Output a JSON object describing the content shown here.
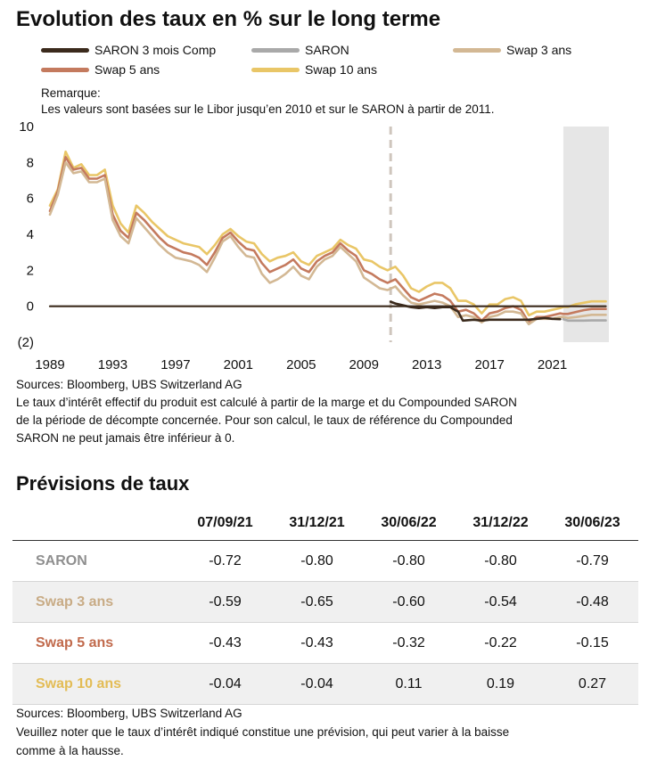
{
  "title": "Evolution des taux en % sur le long terme",
  "remark": {
    "label": "Remarque:",
    "text": "Les valeurs sont basées sur le Libor jusqu’en 2010 et sur le SARON  à partir de 2011."
  },
  "colors": {
    "saron3m": "#3b2a1c",
    "saron": "#a9a9a9",
    "swap3": "#d3b894",
    "swap5": "#c47a5e",
    "swap10": "#e9c667",
    "forecast_shade": "#e6e6e6",
    "divider": "#cfc6bd"
  },
  "chart_data": {
    "type": "line",
    "xlim": [
      1989,
      2024.6
    ],
    "ylim": [
      -2,
      10
    ],
    "x_ticks": [
      1989,
      1993,
      1997,
      2001,
      2005,
      2009,
      2013,
      2017,
      2021
    ],
    "y_ticks": [
      {
        "value": 10,
        "label": "10"
      },
      {
        "value": 8,
        "label": "8"
      },
      {
        "value": 6,
        "label": "6"
      },
      {
        "value": 4,
        "label": "4"
      },
      {
        "value": 2,
        "label": "2"
      },
      {
        "value": 0,
        "label": "0"
      },
      {
        "value": -2,
        "label": "(2)"
      }
    ],
    "divider_x": 2010.7,
    "forecast_start": 2021.7,
    "legend": [
      "SARON 3 mois Comp",
      "SARON",
      "Swap 3 ans",
      "Swap 5 ans",
      "Swap 10 ans"
    ],
    "series": [
      {
        "name": "Swap 10 ans",
        "key": "swap10",
        "points": [
          [
            1989,
            5.6
          ],
          [
            1989.5,
            6.5
          ],
          [
            1990,
            8.6
          ],
          [
            1990.5,
            7.7
          ],
          [
            1991,
            7.9
          ],
          [
            1991.5,
            7.3
          ],
          [
            1992,
            7.3
          ],
          [
            1992.5,
            7.6
          ],
          [
            1993,
            5.6
          ],
          [
            1993.5,
            4.6
          ],
          [
            1994,
            4.1
          ],
          [
            1994.5,
            5.6
          ],
          [
            1995,
            5.2
          ],
          [
            1995.5,
            4.7
          ],
          [
            1996,
            4.3
          ],
          [
            1996.5,
            3.9
          ],
          [
            1997,
            3.7
          ],
          [
            1997.5,
            3.5
          ],
          [
            1998,
            3.4
          ],
          [
            1998.5,
            3.3
          ],
          [
            1999,
            2.9
          ],
          [
            1999.5,
            3.4
          ],
          [
            2000,
            4.0
          ],
          [
            2000.5,
            4.3
          ],
          [
            2001,
            3.9
          ],
          [
            2001.5,
            3.6
          ],
          [
            2002,
            3.5
          ],
          [
            2002.5,
            2.9
          ],
          [
            2003,
            2.5
          ],
          [
            2003.5,
            2.7
          ],
          [
            2004,
            2.8
          ],
          [
            2004.5,
            3.0
          ],
          [
            2005,
            2.5
          ],
          [
            2005.5,
            2.3
          ],
          [
            2006,
            2.8
          ],
          [
            2006.5,
            3.0
          ],
          [
            2007,
            3.2
          ],
          [
            2007.5,
            3.7
          ],
          [
            2008,
            3.4
          ],
          [
            2008.5,
            3.2
          ],
          [
            2009,
            2.6
          ],
          [
            2009.5,
            2.5
          ],
          [
            2010,
            2.2
          ],
          [
            2010.5,
            2.0
          ],
          [
            2011,
            2.2
          ],
          [
            2011.5,
            1.7
          ],
          [
            2012,
            1.0
          ],
          [
            2012.5,
            0.8
          ],
          [
            2013,
            1.1
          ],
          [
            2013.5,
            1.3
          ],
          [
            2014,
            1.3
          ],
          [
            2014.5,
            1.0
          ],
          [
            2015,
            0.3
          ],
          [
            2015.5,
            0.3
          ],
          [
            2016,
            0.1
          ],
          [
            2016.5,
            -0.4
          ],
          [
            2017,
            0.1
          ],
          [
            2017.5,
            0.1
          ],
          [
            2018,
            0.4
          ],
          [
            2018.5,
            0.5
          ],
          [
            2019,
            0.3
          ],
          [
            2019.5,
            -0.5
          ],
          [
            2020,
            -0.3
          ],
          [
            2020.5,
            -0.3
          ],
          [
            2021,
            -0.2
          ],
          [
            2021.5,
            -0.1
          ],
          [
            2021.7,
            -0.04
          ],
          [
            2021.99,
            -0.04
          ],
          [
            2022.5,
            0.11
          ],
          [
            2022.99,
            0.19
          ],
          [
            2023.5,
            0.27
          ],
          [
            2024.4,
            0.27
          ]
        ]
      },
      {
        "name": "Swap 5 ans",
        "key": "swap5",
        "points": [
          [
            1989,
            5.3
          ],
          [
            1989.5,
            6.4
          ],
          [
            1990,
            8.3
          ],
          [
            1990.5,
            7.6
          ],
          [
            1991,
            7.7
          ],
          [
            1991.5,
            7.1
          ],
          [
            1992,
            7.1
          ],
          [
            1992.5,
            7.3
          ],
          [
            1993,
            5.1
          ],
          [
            1993.5,
            4.2
          ],
          [
            1994,
            3.8
          ],
          [
            1994.5,
            5.2
          ],
          [
            1995,
            4.8
          ],
          [
            1995.5,
            4.3
          ],
          [
            1996,
            3.8
          ],
          [
            1996.5,
            3.4
          ],
          [
            1997,
            3.2
          ],
          [
            1997.5,
            3.0
          ],
          [
            1998,
            2.9
          ],
          [
            1998.5,
            2.7
          ],
          [
            1999,
            2.3
          ],
          [
            1999.5,
            3.0
          ],
          [
            2000,
            3.8
          ],
          [
            2000.5,
            4.1
          ],
          [
            2001,
            3.6
          ],
          [
            2001.5,
            3.2
          ],
          [
            2002,
            3.1
          ],
          [
            2002.5,
            2.4
          ],
          [
            2003,
            1.9
          ],
          [
            2003.5,
            2.1
          ],
          [
            2004,
            2.3
          ],
          [
            2004.5,
            2.6
          ],
          [
            2005,
            2.1
          ],
          [
            2005.5,
            1.9
          ],
          [
            2006,
            2.5
          ],
          [
            2006.5,
            2.8
          ],
          [
            2007,
            3.0
          ],
          [
            2007.5,
            3.5
          ],
          [
            2008,
            3.1
          ],
          [
            2008.5,
            2.8
          ],
          [
            2009,
            2.0
          ],
          [
            2009.5,
            1.8
          ],
          [
            2010,
            1.5
          ],
          [
            2010.5,
            1.3
          ],
          [
            2011,
            1.5
          ],
          [
            2011.5,
            1.0
          ],
          [
            2012,
            0.5
          ],
          [
            2012.5,
            0.3
          ],
          [
            2013,
            0.5
          ],
          [
            2013.5,
            0.7
          ],
          [
            2014,
            0.6
          ],
          [
            2014.5,
            0.3
          ],
          [
            2015,
            -0.3
          ],
          [
            2015.5,
            -0.2
          ],
          [
            2016,
            -0.4
          ],
          [
            2016.5,
            -0.8
          ],
          [
            2017,
            -0.4
          ],
          [
            2017.5,
            -0.3
          ],
          [
            2018,
            -0.1
          ],
          [
            2018.5,
            0.0
          ],
          [
            2019,
            -0.2
          ],
          [
            2019.5,
            -0.9
          ],
          [
            2020,
            -0.6
          ],
          [
            2020.5,
            -0.6
          ],
          [
            2021,
            -0.5
          ],
          [
            2021.5,
            -0.4
          ],
          [
            2021.7,
            -0.43
          ],
          [
            2021.99,
            -0.43
          ],
          [
            2022.5,
            -0.32
          ],
          [
            2022.99,
            -0.22
          ],
          [
            2023.5,
            -0.15
          ],
          [
            2024.4,
            -0.15
          ]
        ]
      },
      {
        "name": "Swap 3 ans",
        "key": "swap3",
        "points": [
          [
            1989,
            5.1
          ],
          [
            1989.5,
            6.2
          ],
          [
            1990,
            8.0
          ],
          [
            1990.5,
            7.4
          ],
          [
            1991,
            7.5
          ],
          [
            1991.5,
            6.9
          ],
          [
            1992,
            6.9
          ],
          [
            1992.5,
            7.1
          ],
          [
            1993,
            4.8
          ],
          [
            1993.5,
            3.9
          ],
          [
            1994,
            3.5
          ],
          [
            1994.5,
            4.9
          ],
          [
            1995,
            4.4
          ],
          [
            1995.5,
            3.9
          ],
          [
            1996,
            3.4
          ],
          [
            1996.5,
            3.0
          ],
          [
            1997,
            2.7
          ],
          [
            1997.5,
            2.6
          ],
          [
            1998,
            2.5
          ],
          [
            1998.5,
            2.3
          ],
          [
            1999,
            1.9
          ],
          [
            1999.5,
            2.7
          ],
          [
            2000,
            3.6
          ],
          [
            2000.5,
            3.9
          ],
          [
            2001,
            3.3
          ],
          [
            2001.5,
            2.8
          ],
          [
            2002,
            2.7
          ],
          [
            2002.5,
            1.8
          ],
          [
            2003,
            1.3
          ],
          [
            2003.5,
            1.5
          ],
          [
            2004,
            1.8
          ],
          [
            2004.5,
            2.2
          ],
          [
            2005,
            1.7
          ],
          [
            2005.5,
            1.5
          ],
          [
            2006,
            2.2
          ],
          [
            2006.5,
            2.6
          ],
          [
            2007,
            2.8
          ],
          [
            2007.5,
            3.3
          ],
          [
            2008,
            2.9
          ],
          [
            2008.5,
            2.5
          ],
          [
            2009,
            1.6
          ],
          [
            2009.5,
            1.3
          ],
          [
            2010,
            1.0
          ],
          [
            2010.5,
            0.9
          ],
          [
            2011,
            1.1
          ],
          [
            2011.5,
            0.6
          ],
          [
            2012,
            0.2
          ],
          [
            2012.5,
            0.1
          ],
          [
            2013,
            0.2
          ],
          [
            2013.5,
            0.3
          ],
          [
            2014,
            0.2
          ],
          [
            2014.5,
            0.0
          ],
          [
            2015,
            -0.6
          ],
          [
            2015.5,
            -0.5
          ],
          [
            2016,
            -0.6
          ],
          [
            2016.5,
            -0.9
          ],
          [
            2017,
            -0.6
          ],
          [
            2017.5,
            -0.5
          ],
          [
            2018,
            -0.3
          ],
          [
            2018.5,
            -0.3
          ],
          [
            2019,
            -0.4
          ],
          [
            2019.5,
            -1.0
          ],
          [
            2020,
            -0.7
          ],
          [
            2020.5,
            -0.7
          ],
          [
            2021,
            -0.7
          ],
          [
            2021.5,
            -0.6
          ],
          [
            2021.7,
            -0.59
          ],
          [
            2021.99,
            -0.65
          ],
          [
            2022.5,
            -0.6
          ],
          [
            2022.99,
            -0.54
          ],
          [
            2023.5,
            -0.48
          ],
          [
            2024.4,
            -0.48
          ]
        ]
      },
      {
        "name": "SARON",
        "key": "saron",
        "points": [
          [
            2021.7,
            -0.72
          ],
          [
            2021.99,
            -0.8
          ],
          [
            2022.5,
            -0.8
          ],
          [
            2022.99,
            -0.8
          ],
          [
            2023.5,
            -0.79
          ],
          [
            2024.4,
            -0.79
          ]
        ]
      },
      {
        "name": "SARON 3 mois Comp",
        "key": "saron3m",
        "points": [
          [
            2010.7,
            0.25
          ],
          [
            2011,
            0.15
          ],
          [
            2011.5,
            0.05
          ],
          [
            2012,
            -0.05
          ],
          [
            2012.5,
            -0.1
          ],
          [
            2013,
            -0.05
          ],
          [
            2013.5,
            -0.1
          ],
          [
            2014,
            -0.05
          ],
          [
            2014.5,
            -0.05
          ],
          [
            2015,
            -0.3
          ],
          [
            2015.3,
            -0.8
          ],
          [
            2016,
            -0.75
          ],
          [
            2016.5,
            -0.8
          ],
          [
            2017,
            -0.75
          ],
          [
            2017.5,
            -0.75
          ],
          [
            2018,
            -0.75
          ],
          [
            2018.5,
            -0.75
          ],
          [
            2019,
            -0.75
          ],
          [
            2019.5,
            -0.75
          ],
          [
            2020,
            -0.7
          ],
          [
            2020.5,
            -0.65
          ],
          [
            2021,
            -0.7
          ],
          [
            2021.5,
            -0.72
          ]
        ]
      },
      {
        "name": "zero",
        "key": "saron3m",
        "points": [
          [
            1989,
            0
          ],
          [
            2024.4,
            0
          ]
        ]
      }
    ]
  },
  "sources_chart": "Sources: Bloomberg, UBS Switzerland AG",
  "note_lines": [
    "Le taux d’intérêt effectif du produit est calculé à partir de la marge et du Compounded SARON",
    "de la période de décompte concernée. Pour son calcul, le taux de référence du Compounded",
    "SARON ne peut jamais être inférieur à 0."
  ],
  "forecast": {
    "title": "Prévisions de taux",
    "headers": [
      "07/09/21",
      "31/12/21",
      "30/06/22",
      "31/12/22",
      "30/06/23"
    ],
    "rows": [
      {
        "label": "SARON",
        "color": "#8f8f8f",
        "values": [
          "-0.72",
          "-0.80",
          "-0.80",
          "-0.80",
          "-0.79"
        ]
      },
      {
        "label": "Swap 3 ans",
        "color": "#c8ab85",
        "values": [
          "-0.59",
          "-0.65",
          "-0.60",
          "-0.54",
          "-0.48"
        ]
      },
      {
        "label": "Swap 5 ans",
        "color": "#c16a4c",
        "values": [
          "-0.43",
          "-0.43",
          "-0.32",
          "-0.22",
          "-0.15"
        ]
      },
      {
        "label": "Swap 10 ans",
        "color": "#e3bc55",
        "values": [
          "-0.04",
          "-0.04",
          "0.11",
          "0.19",
          "0.27"
        ]
      }
    ]
  },
  "footer": {
    "sources": "Sources: Bloomberg, UBS Switzerland AG",
    "lines": [
      "Veuillez noter que le taux d’intérêt indiqué constitue une prévision, qui peut varier à la baisse",
      "comme à la hausse."
    ]
  }
}
